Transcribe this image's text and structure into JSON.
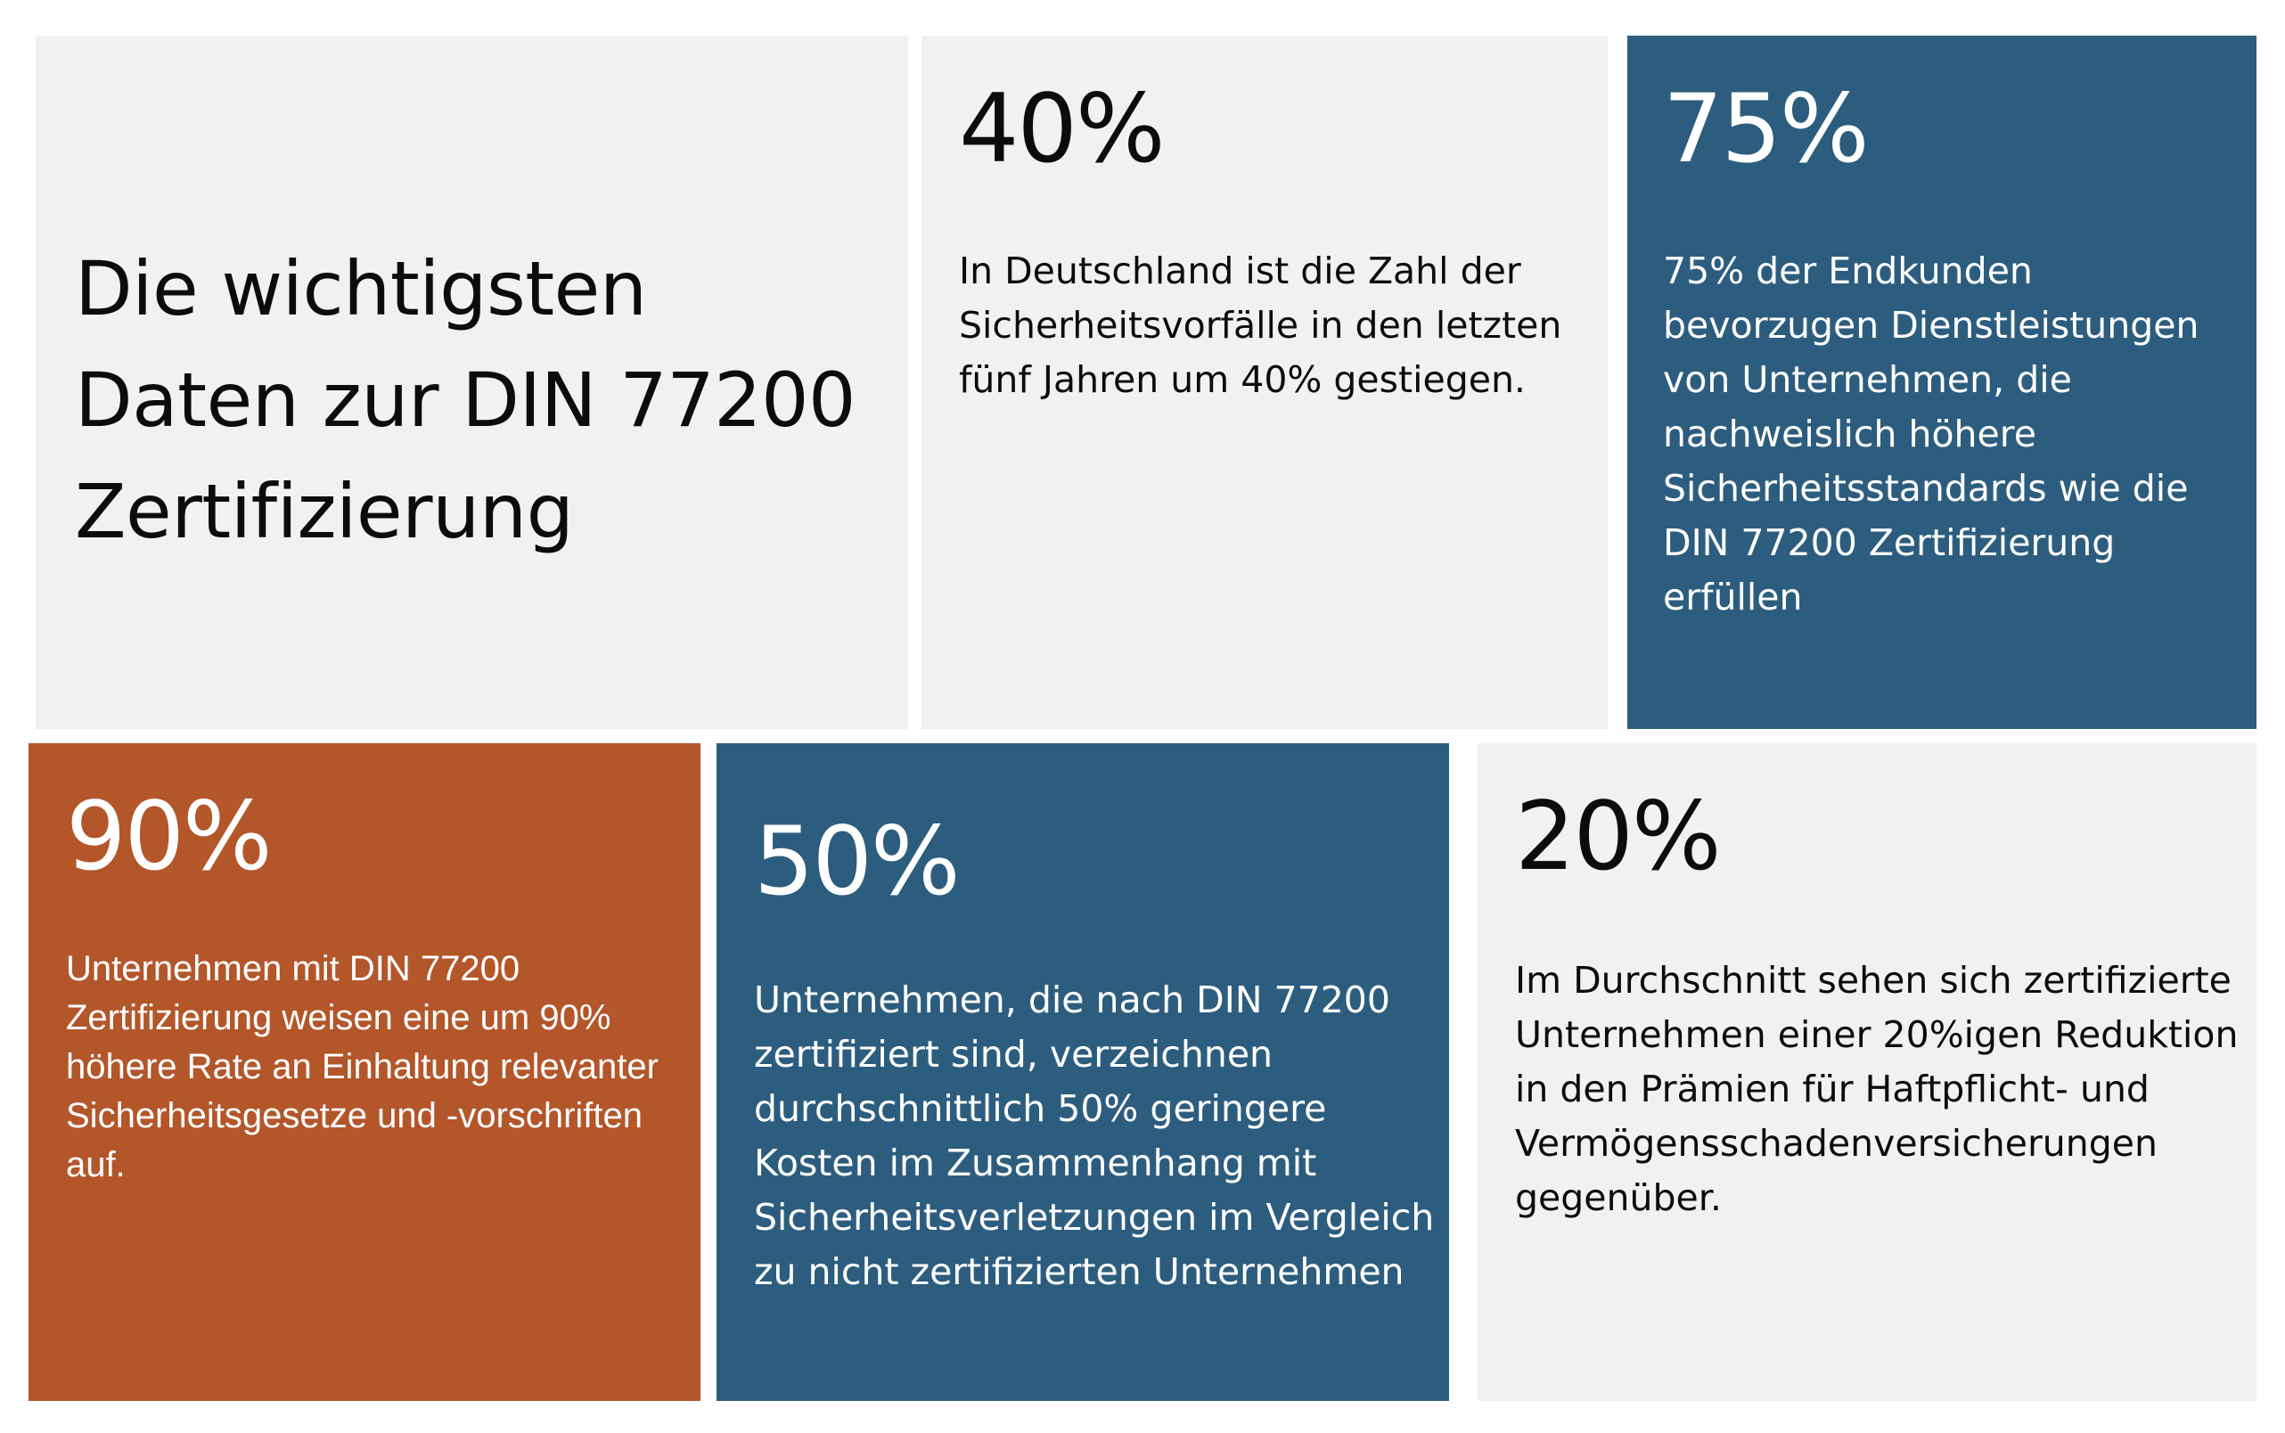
{
  "title_tile": {
    "lines": [
      "Die wichtigsten",
      "Daten zur DIN 77200",
      "Zertifizierung"
    ]
  },
  "stats": [
    {
      "value": "40%",
      "text": "In Deutschland ist die Zahl der Sicherheitsvorfälle in den letzten fünf Jahren um 40% gestiegen."
    },
    {
      "value": "75%",
      "text": "75% der Endkunden bevorzugen Dienstleistungen von Unternehmen, die nachweislich höhere Sicherheitsstandards wie die DIN 77200 Zertifizierung erfüllen"
    },
    {
      "value": "90%",
      "text": "Unternehmen mit DIN 77200 Zertifizierung weisen eine um 90% höhere Rate an Einhaltung relevanter Sicherheitsgesetze und -vorschriften auf."
    },
    {
      "value": "50%",
      "text": "Unternehmen, die nach DIN 77200 zertifiziert sind, verzeichnen durchschnittlich 50% geringere Kosten im Zusammenhang mit Sicherheitsverletzungen im Vergleich zu nicht zertifizierten Unternehmen"
    },
    {
      "value": "20%",
      "text": "Im Durchschnitt sehen sich zertifizierte Unternehmen einer 20%igen Reduktion in den Prämien für Haftpflicht- und Vermögensschadenversicherungen gegenüber."
    }
  ],
  "colors": {
    "light_tile": "#f1f1f1",
    "blue_tile": "#2d5d7e",
    "orange_tile": "#b3562a",
    "dark_text": "#0c0c0c",
    "light_text": "#ffffff"
  }
}
